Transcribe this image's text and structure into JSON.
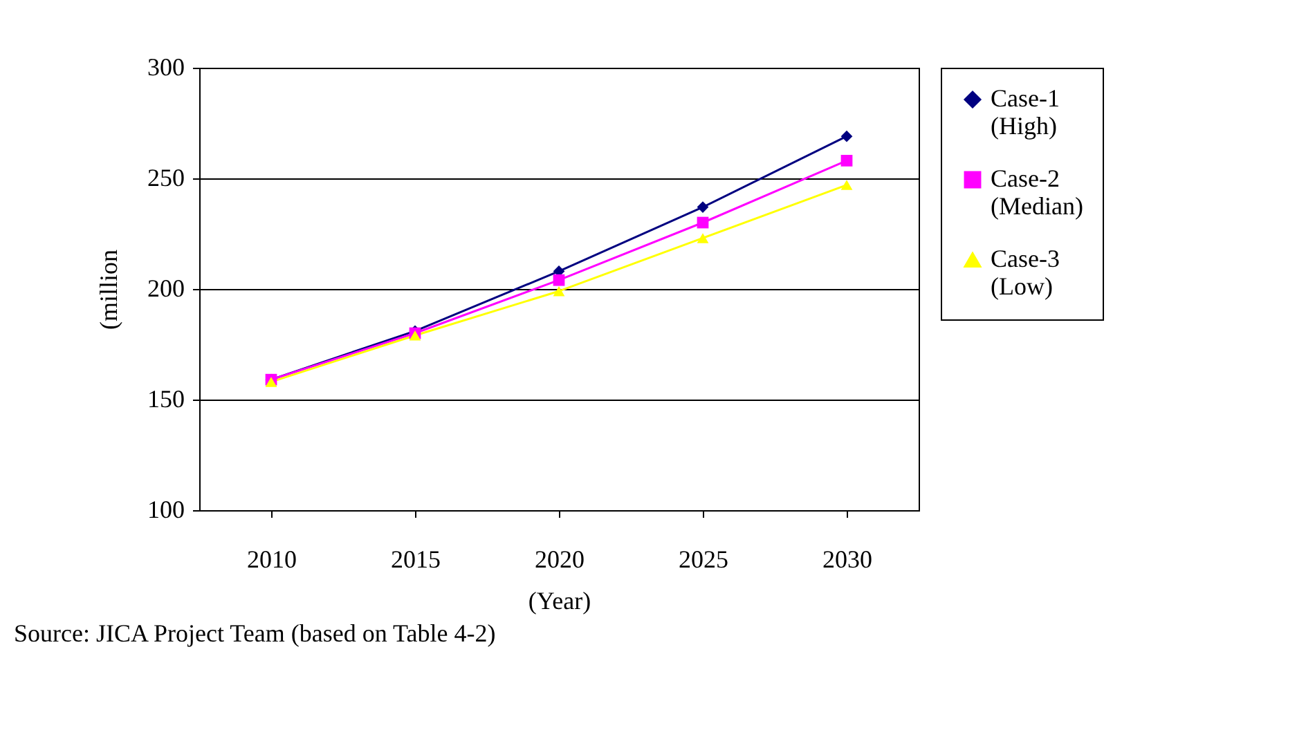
{
  "chart_data": {
    "type": "line",
    "ylabel": "(million",
    "xlabel": "(Year)",
    "categories": [
      "2010",
      "2015",
      "2020",
      "2025",
      "2030"
    ],
    "series": [
      {
        "name": "Case-1\n(High)",
        "color": "#000080",
        "marker": "diamond",
        "values": [
          159,
          181,
          208,
          237,
          269
        ]
      },
      {
        "name": "Case-2\n(Median)",
        "color": "#ff00ff",
        "marker": "square",
        "values": [
          159,
          180,
          204,
          230,
          258
        ]
      },
      {
        "name": "Case-3\n(Low)",
        "color": "#ffff00",
        "marker": "triangle",
        "values": [
          158,
          179,
          199,
          223,
          247
        ]
      }
    ],
    "ylim": [
      100,
      300
    ],
    "yticks": [
      100,
      150,
      200,
      250,
      300
    ],
    "grid": "y",
    "legend": "right",
    "annotations": [
      "Source: JICA Project Team (based on Table 4-2)"
    ]
  }
}
